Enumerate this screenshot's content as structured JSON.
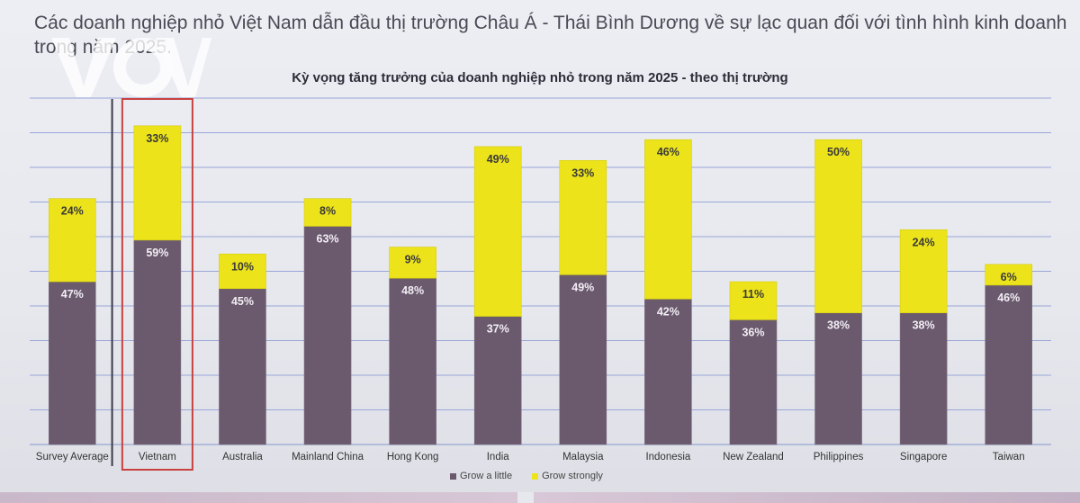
{
  "slide": {
    "title": "Các doanh nghiệp nhỏ Việt Nam dẫn đầu thị trường Châu Á - Thái Bình Dương về sự lạc quan đối với tình hình kinh doanh trong năm 2025.",
    "watermark": "VOV"
  },
  "colors": {
    "grow_a_little": "#6b5a6e",
    "grow_strongly": "#ece31a",
    "gridline": "#9aa6d8",
    "highlight_box": "#c8413f",
    "label_text": "#ffffff"
  },
  "chart_data": {
    "type": "bar",
    "stacked": true,
    "title": "Kỳ vọng tăng trưởng của doanh nghiệp nhỏ trong năm 2025 - theo thị trường",
    "categories": [
      "Survey Average",
      "Vietnam",
      "Australia",
      "Mainland China",
      "Hong Kong",
      "India",
      "Malaysia",
      "Indonesia",
      "New Zealand",
      "Philippines",
      "Singapore",
      "Taiwan"
    ],
    "series": [
      {
        "name": "Grow a little",
        "values": [
          47,
          59,
          45,
          63,
          48,
          37,
          49,
          42,
          36,
          38,
          38,
          46
        ],
        "labels": [
          "47%",
          "59%",
          "45%",
          "63%",
          "48%",
          "37%",
          "49%",
          "42%",
          "36%",
          "38%",
          "38%",
          "46%"
        ]
      },
      {
        "name": "Grow strongly",
        "values": [
          24,
          33,
          10,
          8,
          9,
          49,
          33,
          46,
          11,
          50,
          24,
          6
        ],
        "labels": [
          "24%",
          "33%",
          "10%",
          "8%",
          "9%",
          "49%",
          "33%",
          "46%",
          "11%",
          "50%",
          "24%",
          "6%"
        ]
      }
    ],
    "ylim": [
      0,
      100
    ],
    "grid": true,
    "legend": "bottom-center",
    "highlighted_category": "Vietnam"
  }
}
